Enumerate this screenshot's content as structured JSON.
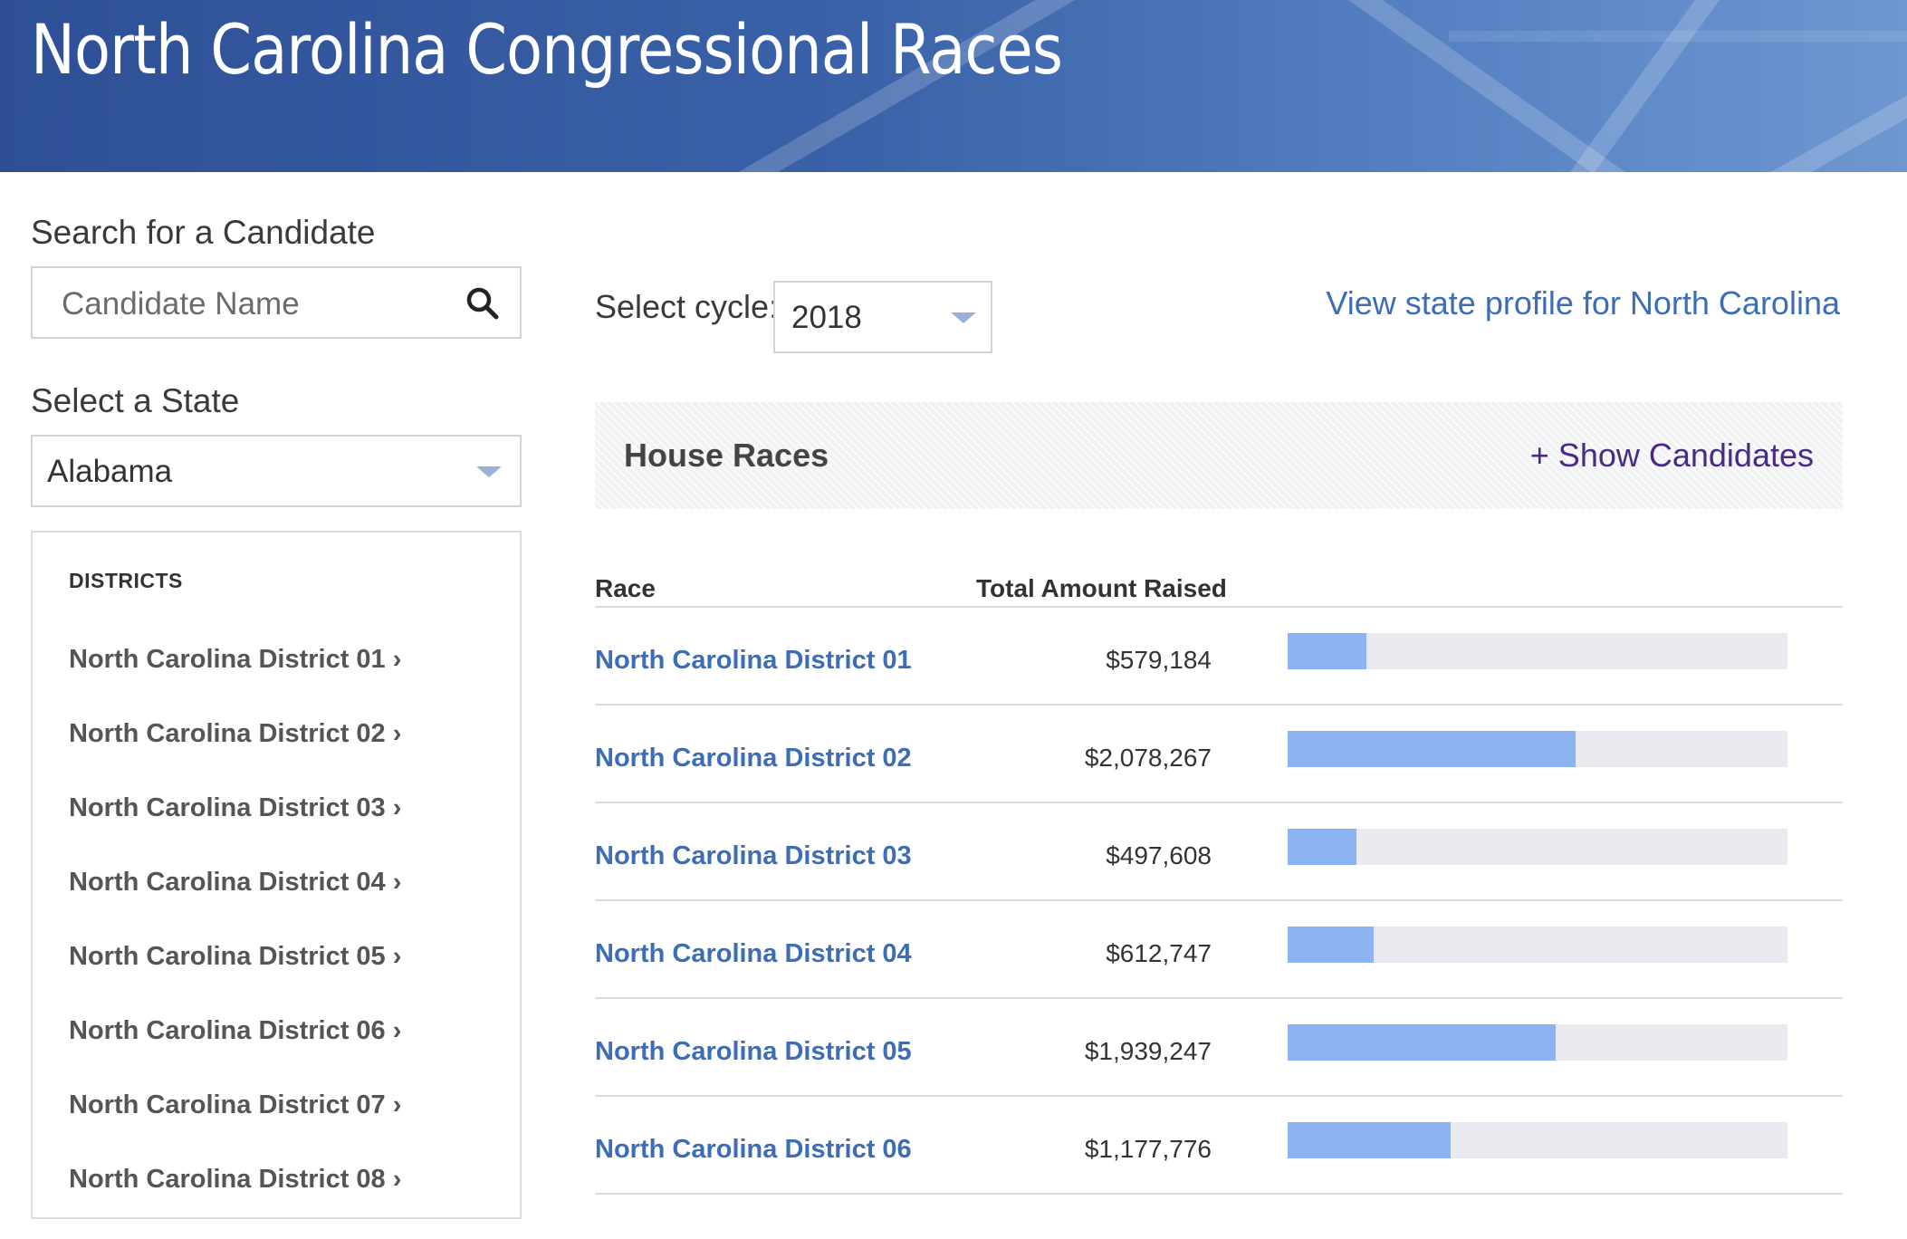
{
  "header": {
    "title": "North Carolina Congressional Races"
  },
  "sidebar": {
    "search_label": "Search for a Candidate",
    "search_placeholder": "Candidate Name",
    "state_label": "Select a State",
    "state_value": "Alabama",
    "districts_heading": "DISTRICTS",
    "districts": [
      "North Carolina District 01 ›",
      "North Carolina District 02 ›",
      "North Carolina District 03 ›",
      "North Carolina District 04 ›",
      "North Carolina District 05 ›",
      "North Carolina District 06 ›",
      "North Carolina District 07 ›",
      "North Carolina District 08 ›"
    ]
  },
  "main": {
    "cycle_label": "Select cycle:",
    "cycle_value": "2018",
    "state_profile_link": "View state profile for North Carolina",
    "section_title": "House Races",
    "toggle_label": "+ Show Candidates",
    "columns": {
      "race": "Race",
      "amount": "Total Amount Raised"
    },
    "races": [
      {
        "name": "North Carolina District 01",
        "amount": "$579,184",
        "raised": 579184
      },
      {
        "name": "North Carolina District 02",
        "amount": "$2,078,267",
        "raised": 2078267
      },
      {
        "name": "North Carolina District 03",
        "amount": "$497,608",
        "raised": 497608
      },
      {
        "name": "North Carolina District 04",
        "amount": "$612,747",
        "raised": 612747
      },
      {
        "name": "North Carolina District 05",
        "amount": "$1,939,247",
        "raised": 1939247
      },
      {
        "name": "North Carolina District 06",
        "amount": "$1,177,776",
        "raised": 1177776
      }
    ],
    "bar_fractions": [
      0.158,
      0.576,
      0.137,
      0.172,
      0.537,
      0.326
    ]
  },
  "colors": {
    "brand_blue": "#2e4f96",
    "link_blue": "#3d6db5",
    "toggle_purple": "#4b2a86",
    "bar_fill": "#8db3f0",
    "bar_track": "#e9eaef"
  },
  "icons": {
    "search": "search-icon",
    "dropdown": "chevron-down-icon"
  }
}
